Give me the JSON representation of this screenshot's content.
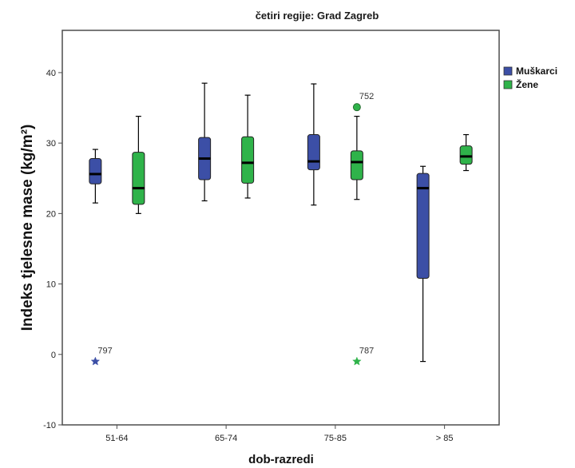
{
  "chart_data": {
    "type": "boxplot",
    "title": "četiri regije: Grad Zagreb",
    "xlabel": "dob-razredi",
    "ylabel": "Indeks tjelesne mase (kg/m²)",
    "ylim": [
      -10,
      46
    ],
    "yticks": [
      -10,
      0,
      10,
      20,
      30,
      40
    ],
    "categories": [
      "51-64",
      "65-74",
      "75-85",
      "> 85"
    ],
    "grid": false,
    "legend_position": "right",
    "series": [
      {
        "name": "Muškarci",
        "color": "#3c4fa6",
        "boxes": [
          {
            "min": 21.5,
            "q1": 24.2,
            "median": 25.6,
            "q3": 27.8,
            "max": 29.1
          },
          {
            "min": 21.8,
            "q1": 24.8,
            "median": 27.8,
            "q3": 30.8,
            "max": 38.5
          },
          {
            "min": 21.2,
            "q1": 26.2,
            "median": 27.4,
            "q3": 31.2,
            "max": 38.4
          },
          {
            "min": -1.0,
            "q1": 10.8,
            "median": 23.6,
            "q3": 25.7,
            "max": 26.7
          }
        ]
      },
      {
        "name": "Žene",
        "color": "#2fb34a",
        "boxes": [
          {
            "min": 20.0,
            "q1": 21.3,
            "median": 23.6,
            "q3": 28.7,
            "max": 33.8
          },
          {
            "min": 22.2,
            "q1": 24.3,
            "median": 27.2,
            "q3": 30.9,
            "max": 36.8
          },
          {
            "min": 22.0,
            "q1": 24.8,
            "median": 27.3,
            "q3": 28.9,
            "max": 33.8
          },
          {
            "min": 26.1,
            "q1": 27.0,
            "median": 28.1,
            "q3": 29.6,
            "max": 31.2
          }
        ]
      }
    ],
    "outliers": [
      {
        "category": "51-64",
        "series": "Muškarci",
        "y": -1.0,
        "label": "797",
        "marker": "star"
      },
      {
        "category": "75-85",
        "series": "Žene",
        "y": 35.1,
        "label": "752",
        "marker": "circle"
      },
      {
        "category": "75-85",
        "series": "Žene",
        "y": -1.0,
        "label": "787",
        "marker": "star"
      }
    ]
  }
}
